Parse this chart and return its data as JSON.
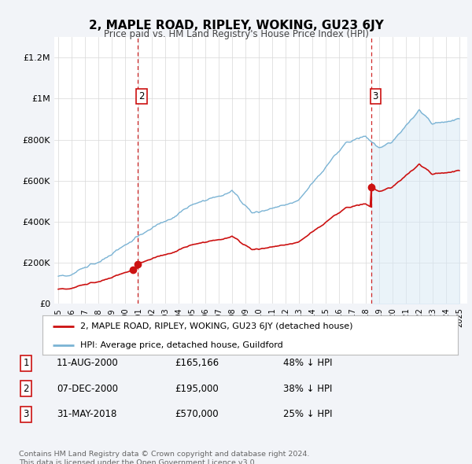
{
  "title": "2, MAPLE ROAD, RIPLEY, WOKING, GU23 6JY",
  "subtitle": "Price paid vs. HM Land Registry's House Price Index (HPI)",
  "hpi_color": "#7ab3d4",
  "hpi_fill_color": "#d6e8f5",
  "price_color": "#cc1111",
  "background_color": "#f2f4f8",
  "plot_bg_color": "#ffffff",
  "ylim": [
    0,
    1300000
  ],
  "yticks": [
    0,
    200000,
    400000,
    600000,
    800000,
    1000000,
    1200000
  ],
  "sale_times": [
    2000.614,
    2000.922,
    2018.414
  ],
  "sale_prices": [
    165166,
    195000,
    570000
  ],
  "sale_labels": [
    "1",
    "2",
    "3"
  ],
  "table_entries": [
    {
      "num": "1",
      "date": "11-AUG-2000",
      "price": "£165,166",
      "pct": "48% ↓ HPI"
    },
    {
      "num": "2",
      "date": "07-DEC-2000",
      "price": "£195,000",
      "pct": "38% ↓ HPI"
    },
    {
      "num": "3",
      "date": "31-MAY-2018",
      "price": "£570,000",
      "pct": "25% ↓ HPI"
    }
  ],
  "footnote": "Contains HM Land Registry data © Crown copyright and database right 2024.\nThis data is licensed under the Open Government Licence v3.0.",
  "legend_house": "2, MAPLE ROAD, RIPLEY, WOKING, GU23 6JY (detached house)",
  "legend_hpi": "HPI: Average price, detached house, Guildford"
}
